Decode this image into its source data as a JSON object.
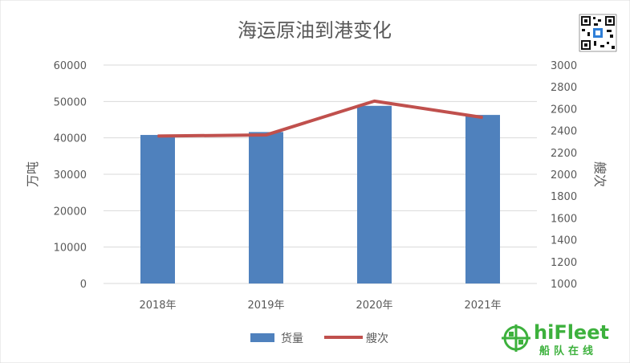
{
  "chart_data": {
    "type": "bar",
    "title": "海运原油到港变化",
    "categories": [
      "2018年",
      "2019年",
      "2020年",
      "2021年"
    ],
    "series": [
      {
        "name": "货量",
        "type": "bar",
        "axis": "left",
        "color": "#4F81BD",
        "values": [
          40800,
          41600,
          48800,
          46300
        ]
      },
      {
        "name": "艘次",
        "type": "line",
        "axis": "right",
        "color": "#C0504D",
        "values": [
          2350,
          2360,
          2670,
          2520
        ]
      }
    ],
    "ylabel": "万吨",
    "y2label": "艘次",
    "ylim": [
      0,
      60000
    ],
    "y2lim": [
      1000,
      3000
    ],
    "yticks": [
      "0",
      "10000",
      "20000",
      "30000",
      "40000",
      "50000",
      "60000"
    ],
    "y2ticks": [
      "1000",
      "1200",
      "1400",
      "1600",
      "1800",
      "2000",
      "2200",
      "2400",
      "2600",
      "2800",
      "3000"
    ],
    "grid": true,
    "legend": "bottom"
  },
  "branding": {
    "logo_text": "hiFleet",
    "logo_subtext": "船队在线",
    "logo_color": "#3DB13D",
    "qr_code": "qr-code-icon"
  }
}
